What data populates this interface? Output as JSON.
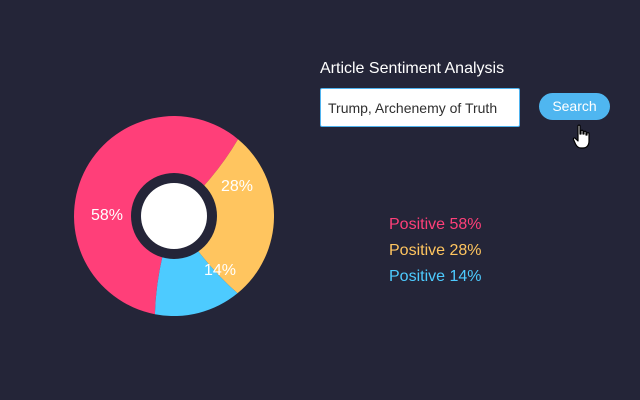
{
  "app": {
    "title": "Article Sentiment Analysis"
  },
  "search": {
    "value": "Trump, Archenemy of Truth",
    "button_label": "Search"
  },
  "colors": {
    "background": "#242538",
    "pink": "#ff3f79",
    "yellow": "#ffc55f",
    "blue": "#4dcbff",
    "ring": "#242538",
    "center": "#ffffff",
    "button": "#4fb6f0"
  },
  "chart_data": {
    "type": "pie",
    "segments": [
      {
        "label": "58%",
        "value": 58,
        "color": "#ff3f79"
      },
      {
        "label": "28%",
        "value": 28,
        "color": "#ffc55f"
      },
      {
        "label": "14%",
        "value": 14,
        "color": "#4dcbff"
      }
    ]
  },
  "legend": {
    "items": [
      {
        "label": "Positive 58%",
        "color": "#ff3f79"
      },
      {
        "label": "Positive 28%",
        "color": "#ffc55f"
      },
      {
        "label": "Positive 14%",
        "color": "#4dcbff"
      }
    ]
  },
  "cursor": {
    "icon": "hand-pointer-icon"
  }
}
